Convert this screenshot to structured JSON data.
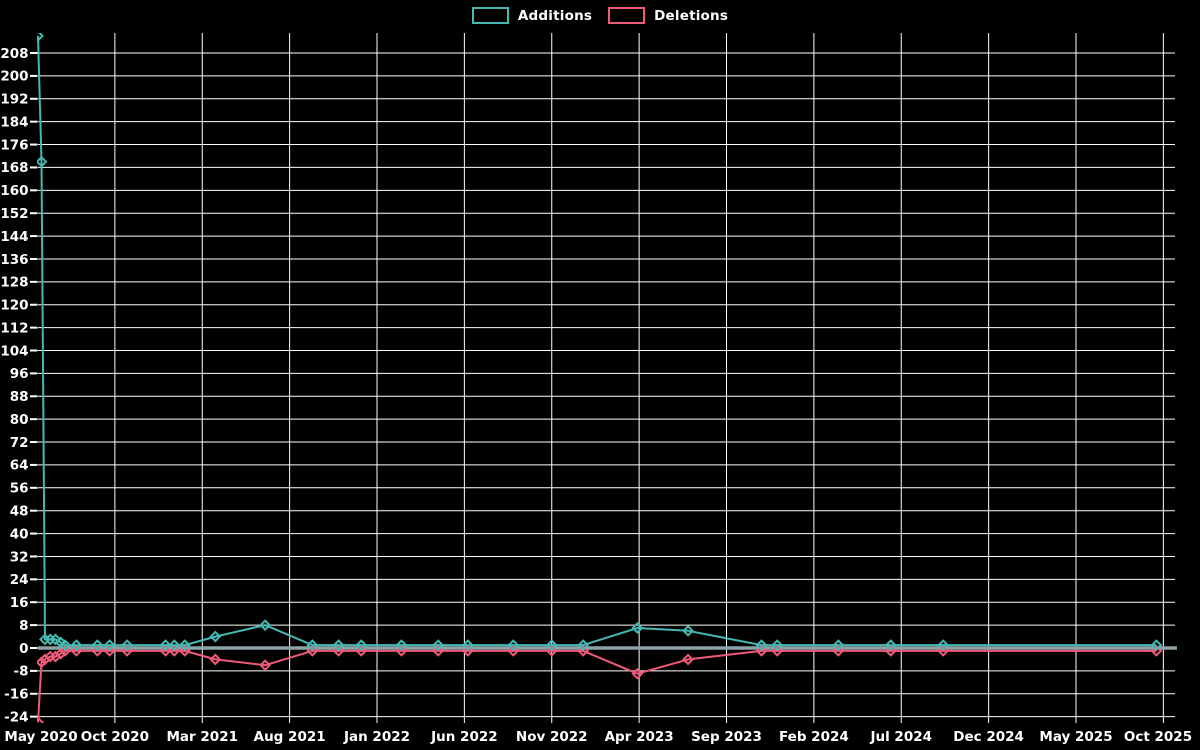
{
  "chart_data": {
    "type": "line",
    "title": "",
    "legend": {
      "position": "top-center",
      "entries": [
        "Additions",
        "Deletions"
      ]
    },
    "x_axis": {
      "tick_labels": [
        "May 2020",
        "Oct 2020",
        "Mar 2021",
        "Aug 2021",
        "Jan 2022",
        "Jun 2022",
        "Nov 2022",
        "Apr 2023",
        "Sep 2023",
        "Feb 2024",
        "Jul 2024",
        "Dec 2024",
        "May 2025",
        "Oct 2025"
      ],
      "months_per_tick": 5
    },
    "y_axis": {
      "tick_min": -24,
      "tick_max": 208,
      "tick_step": 8,
      "ylim": [
        -26,
        215
      ]
    },
    "grid": true,
    "colors": {
      "background": "#000000",
      "grid": "#ffffff",
      "zero_line": "#8ca3a8",
      "text": "#ffffff",
      "additions": "#46b8b2",
      "deletions": "#ee5a78"
    },
    "points_x_months_from_may2020": [
      0.6,
      0.8,
      1.0,
      1.3,
      1.6,
      1.9,
      2.15,
      2.8,
      4.0,
      4.7,
      5.7,
      7.9,
      8.4,
      9.0,
      10.75,
      13.6,
      16.3,
      17.8,
      19.1,
      21.4,
      23.5,
      25.2,
      27.8,
      30.0,
      31.8,
      34.9,
      37.8,
      42.0,
      42.9,
      46.4,
      49.4,
      52.4,
      64.6
    ],
    "series": [
      {
        "name": "Additions",
        "color": "#46b8b2",
        "marker": "diamond",
        "values": [
          214,
          170,
          3,
          3,
          3,
          2,
          1,
          1,
          1,
          1,
          1,
          1,
          1,
          1,
          4,
          8,
          1,
          1,
          1,
          1,
          1,
          1,
          1,
          1,
          1,
          7,
          6,
          1,
          1,
          1,
          1,
          1,
          1
        ]
      },
      {
        "name": "Deletions",
        "color": "#ee5a78",
        "marker": "diamond",
        "values": [
          -26,
          -5,
          -4,
          -3,
          -3,
          -2,
          -1,
          -1,
          -1,
          -1,
          -1,
          -1,
          -1,
          -1,
          -4,
          -6,
          -1,
          -1,
          -1,
          -1,
          -1,
          -1,
          -1,
          -1,
          -1,
          -9,
          -4,
          -1,
          -1,
          -1,
          -1,
          -1,
          -1
        ]
      }
    ]
  }
}
